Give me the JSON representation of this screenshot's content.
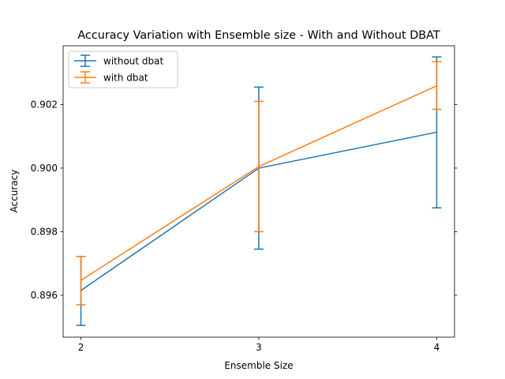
{
  "chart_data": {
    "type": "line",
    "title": "Accuracy Variation with Ensemble size - With and Without DBAT",
    "xlabel": "Ensemble Size",
    "ylabel": "Accuracy",
    "x": [
      2,
      3,
      4
    ],
    "xlim": [
      1.9,
      4.1
    ],
    "ylim": [
      0.89468,
      0.90385
    ],
    "xticks": [
      "2",
      "3",
      "4"
    ],
    "yticks": [
      "0.896",
      "0.898",
      "0.900",
      "0.902"
    ],
    "ytick_values": [
      0.896,
      0.898,
      0.9,
      0.902
    ],
    "grid": false,
    "legend": "top-left",
    "error_bars": true,
    "series": [
      {
        "name": "without dbat",
        "color": "#1f77b4",
        "values": [
          0.89615,
          0.9,
          0.90113
        ],
        "err_low": [
          0.89505,
          0.89745,
          0.89875
        ],
        "err_high": [
          0.89722,
          0.90255,
          0.9035
        ]
      },
      {
        "name": "with dbat",
        "color": "#ff7f0e",
        "values": [
          0.89647,
          0.90005,
          0.90259
        ],
        "err_low": [
          0.8957,
          0.898,
          0.90185
        ],
        "err_high": [
          0.89722,
          0.9021,
          0.90335
        ]
      }
    ]
  }
}
